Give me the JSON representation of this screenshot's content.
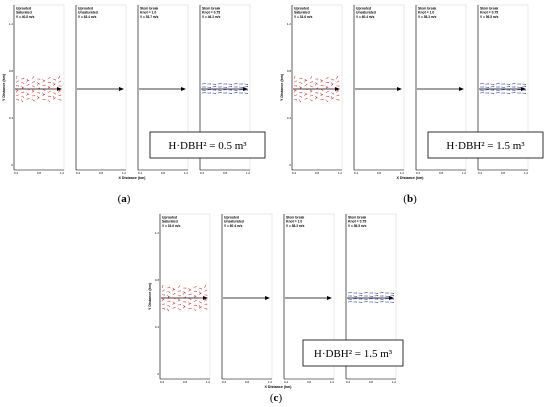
{
  "figure": {
    "panels": [
      {
        "id": "a",
        "label_open": "(",
        "label_letter": "a",
        "label_close": ")",
        "box_text": "H·DBH² = 0.5 m³",
        "xlabel": "X Distance (km)",
        "ylabel": "Y Distance (km)",
        "subplots": [
          {
            "line1": "Uprooted",
            "line2": "Saturated",
            "vel": "V  = 40.8 m/s",
            "vectors": "red"
          },
          {
            "line1": "Uprooted",
            "line2": "Unsaturated",
            "vel": "V  = 63.4 m/s",
            "vectors": "none"
          },
          {
            "line1": "Stem break",
            "line2": "Knot = 1.0",
            "vel": "V  = 53.7 m/s",
            "vectors": "none"
          },
          {
            "line1": "Stem break",
            "line2": "Knot = 0.75",
            "vel": "V  = 46.2 m/s",
            "vectors": "blue"
          }
        ]
      },
      {
        "id": "b",
        "label_open": "(",
        "label_letter": "b",
        "label_close": ")",
        "box_text": "H·DBH² = 1.5 m³",
        "xlabel": "X Distance (km)",
        "ylabel": "Y Distance (km)",
        "subplots": [
          {
            "line1": "Uprooted",
            "line2": "Saturated",
            "vel": "V  = 33.6 m/s",
            "vectors": "red"
          },
          {
            "line1": "Uprooted",
            "line2": "Unsaturated",
            "vel": "V  = 60.4 m/s",
            "vectors": "none"
          },
          {
            "line1": "Stem break",
            "line2": "Knot = 1.0",
            "vel": "V  = 58.3 m/s",
            "vectors": "none"
          },
          {
            "line1": "Stem break",
            "line2": "Knot = 0.75",
            "vel": "V  = 56.5 m/s",
            "vectors": "blue"
          }
        ]
      },
      {
        "id": "c",
        "label_open": "(",
        "label_letter": "c",
        "label_close": ")",
        "box_text": "H·DBH² = 1.5 m³",
        "xlabel": "X Distance (km)",
        "ylabel": "Y Distance (km)",
        "subplots": [
          {
            "line1": "Uprooted",
            "line2": "Saturated",
            "vel": "V  = 33.6 m/s",
            "vectors": "red"
          },
          {
            "line1": "Uprooted",
            "line2": "Unsaturated",
            "vel": "V  = 60.4 m/s",
            "vectors": "none"
          },
          {
            "line1": "Stem break",
            "line2": "Knot = 1.0",
            "vel": "V  = 58.3 m/s",
            "vectors": "none"
          },
          {
            "line1": "Stem break",
            "line2": "Knot = 0.75",
            "vel": "V  = 56.5 m/s",
            "vectors": "blue"
          }
        ]
      }
    ],
    "x_ticks": [
      "0.4",
      "0.8",
      "1.2"
    ],
    "y_ticks": [
      "1.2",
      "0.8",
      "0.4",
      "0"
    ],
    "colors": {
      "red": "#d62020",
      "blue": "#1a2a9a",
      "arrow": "#000000",
      "axis": "#000000"
    }
  }
}
